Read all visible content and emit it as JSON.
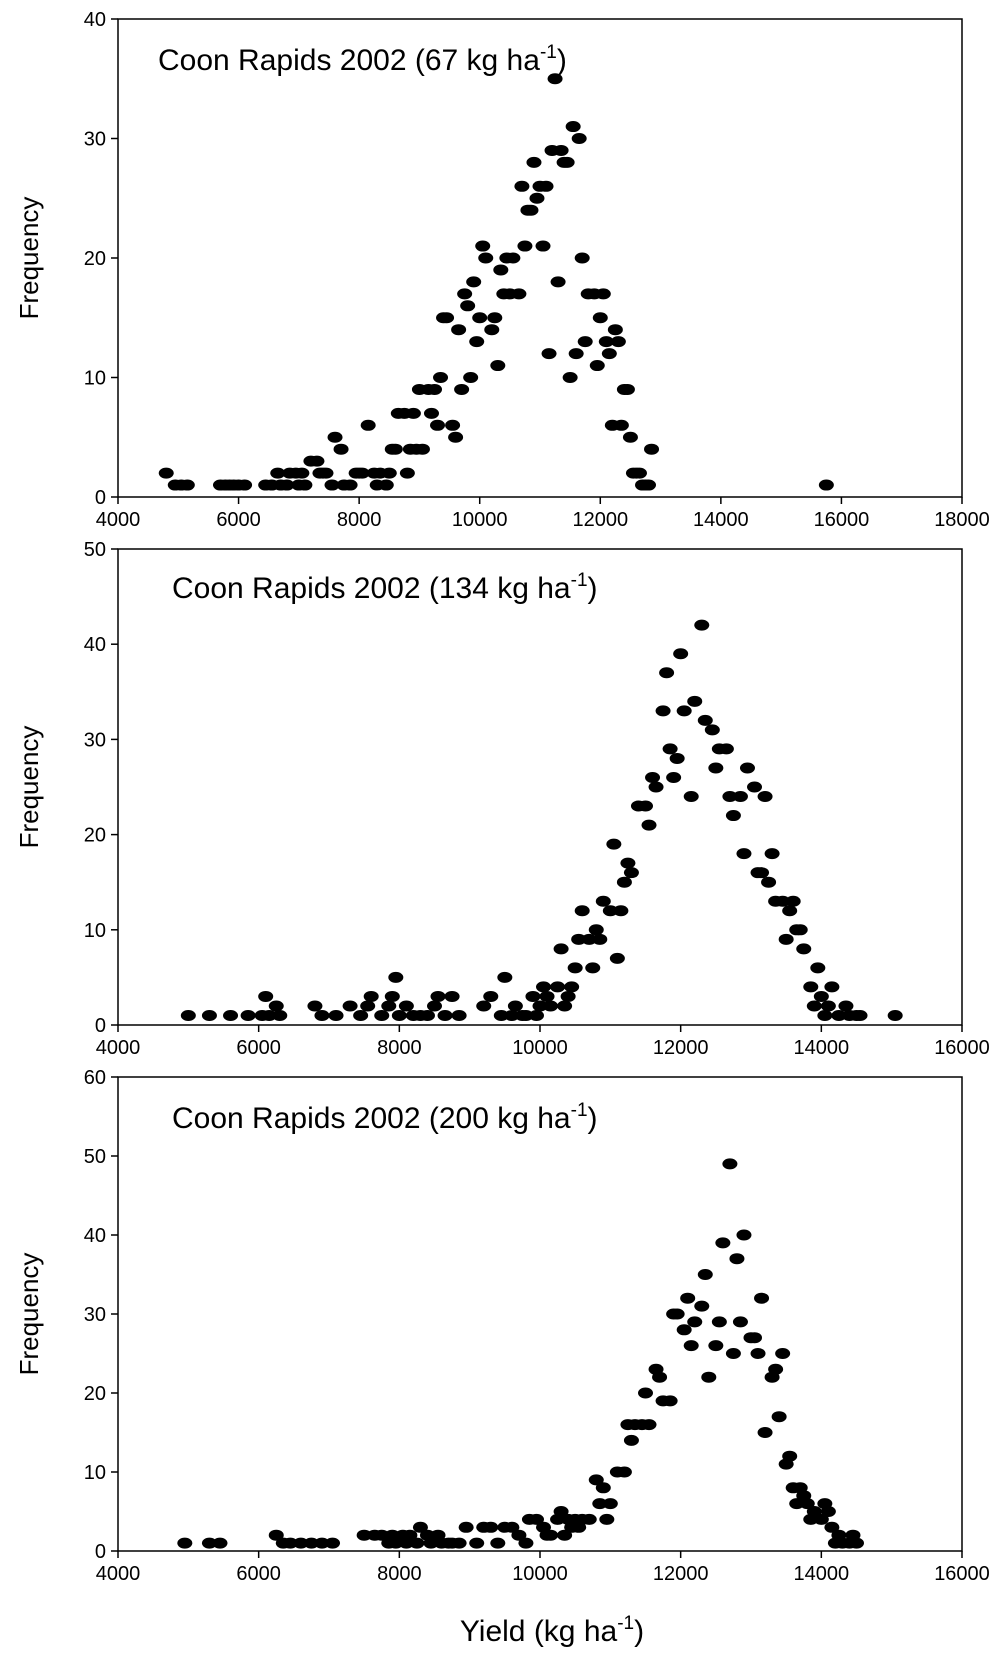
{
  "chart_data": [
    {
      "type": "scatter",
      "title": "Coon Rapids 2002 (67 kg ha",
      "title_sup": "-1",
      "title_end": ")",
      "ylabel": "Frequency",
      "xlim": [
        4000,
        18000
      ],
      "ylim": [
        0,
        40
      ],
      "xticks": [
        4000,
        6000,
        8000,
        10000,
        12000,
        14000,
        16000,
        18000
      ],
      "yticks": [
        0,
        10,
        20,
        30,
        40
      ],
      "points": [
        [
          4800,
          2
        ],
        [
          4950,
          1
        ],
        [
          5050,
          1
        ],
        [
          5150,
          1
        ],
        [
          5700,
          1
        ],
        [
          5780,
          1
        ],
        [
          5850,
          1
        ],
        [
          5920,
          1
        ],
        [
          6000,
          1
        ],
        [
          6100,
          1
        ],
        [
          6450,
          1
        ],
        [
          6550,
          1
        ],
        [
          6650,
          2
        ],
        [
          6700,
          1
        ],
        [
          6800,
          1
        ],
        [
          6850,
          2
        ],
        [
          6950,
          2
        ],
        [
          7000,
          1
        ],
        [
          7050,
          2
        ],
        [
          7100,
          1
        ],
        [
          7200,
          3
        ],
        [
          7300,
          3
        ],
        [
          7350,
          2
        ],
        [
          7400,
          2
        ],
        [
          7450,
          2
        ],
        [
          7550,
          1
        ],
        [
          7600,
          5
        ],
        [
          7700,
          4
        ],
        [
          7750,
          1
        ],
        [
          7850,
          1
        ],
        [
          7950,
          2
        ],
        [
          8000,
          2
        ],
        [
          8050,
          2
        ],
        [
          8150,
          6
        ],
        [
          8250,
          2
        ],
        [
          8300,
          1
        ],
        [
          8350,
          2
        ],
        [
          8450,
          1
        ],
        [
          8500,
          2
        ],
        [
          8550,
          4
        ],
        [
          8600,
          4
        ],
        [
          8650,
          7
        ],
        [
          8750,
          7
        ],
        [
          8800,
          2
        ],
        [
          8850,
          4
        ],
        [
          8900,
          7
        ],
        [
          8950,
          4
        ],
        [
          9000,
          9
        ],
        [
          9050,
          4
        ],
        [
          9150,
          9
        ],
        [
          9200,
          7
        ],
        [
          9250,
          9
        ],
        [
          9300,
          6
        ],
        [
          9350,
          10
        ],
        [
          9400,
          15
        ],
        [
          9450,
          15
        ],
        [
          9550,
          6
        ],
        [
          9600,
          5
        ],
        [
          9650,
          14
        ],
        [
          9700,
          9
        ],
        [
          9750,
          17
        ],
        [
          9800,
          16
        ],
        [
          9850,
          10
        ],
        [
          9900,
          18
        ],
        [
          9950,
          13
        ],
        [
          10000,
          15
        ],
        [
          10050,
          21
        ],
        [
          10100,
          20
        ],
        [
          10200,
          14
        ],
        [
          10250,
          15
        ],
        [
          10300,
          11
        ],
        [
          10350,
          19
        ],
        [
          10400,
          17
        ],
        [
          10450,
          20
        ],
        [
          10500,
          17
        ],
        [
          10550,
          20
        ],
        [
          10650,
          17
        ],
        [
          10700,
          26
        ],
        [
          10750,
          21
        ],
        [
          10800,
          24
        ],
        [
          10850,
          24
        ],
        [
          10900,
          28
        ],
        [
          10950,
          25
        ],
        [
          11000,
          26
        ],
        [
          11050,
          21
        ],
        [
          11100,
          26
        ],
        [
          11150,
          12
        ],
        [
          11200,
          29
        ],
        [
          11250,
          35
        ],
        [
          11300,
          18
        ],
        [
          11350,
          29
        ],
        [
          11400,
          28
        ],
        [
          11450,
          28
        ],
        [
          11500,
          10
        ],
        [
          11550,
          31
        ],
        [
          11600,
          12
        ],
        [
          11650,
          30
        ],
        [
          11700,
          20
        ],
        [
          11750,
          13
        ],
        [
          11800,
          17
        ],
        [
          11900,
          17
        ],
        [
          11950,
          11
        ],
        [
          12000,
          15
        ],
        [
          12050,
          17
        ],
        [
          12100,
          13
        ],
        [
          12150,
          12
        ],
        [
          12200,
          6
        ],
        [
          12250,
          14
        ],
        [
          12300,
          13
        ],
        [
          12350,
          6
        ],
        [
          12400,
          9
        ],
        [
          12450,
          9
        ],
        [
          12500,
          5
        ],
        [
          12550,
          2
        ],
        [
          12600,
          2
        ],
        [
          12650,
          2
        ],
        [
          12700,
          1
        ],
        [
          12750,
          1
        ],
        [
          12800,
          1
        ],
        [
          12850,
          4
        ],
        [
          15750,
          1
        ]
      ]
    },
    {
      "type": "scatter",
      "title": "Coon Rapids 2002 (134 kg ha",
      "title_sup": "-1",
      "title_end": ")",
      "ylabel": "Frequency",
      "xlim": [
        4000,
        16000
      ],
      "ylim": [
        0,
        50
      ],
      "xticks": [
        4000,
        6000,
        8000,
        10000,
        12000,
        14000,
        16000
      ],
      "yticks": [
        0,
        10,
        20,
        30,
        40,
        50
      ],
      "points": [
        [
          5000,
          1
        ],
        [
          5300,
          1
        ],
        [
          5600,
          1
        ],
        [
          5850,
          1
        ],
        [
          6050,
          1
        ],
        [
          6100,
          3
        ],
        [
          6150,
          1
        ],
        [
          6250,
          2
        ],
        [
          6300,
          1
        ],
        [
          6800,
          2
        ],
        [
          6900,
          1
        ],
        [
          7100,
          1
        ],
        [
          7300,
          2
        ],
        [
          7450,
          1
        ],
        [
          7550,
          2
        ],
        [
          7600,
          3
        ],
        [
          7750,
          1
        ],
        [
          7850,
          2
        ],
        [
          7900,
          3
        ],
        [
          7950,
          5
        ],
        [
          8000,
          1
        ],
        [
          8100,
          2
        ],
        [
          8200,
          1
        ],
        [
          8300,
          1
        ],
        [
          8400,
          1
        ],
        [
          8500,
          2
        ],
        [
          8550,
          3
        ],
        [
          8650,
          1
        ],
        [
          8750,
          3
        ],
        [
          8850,
          1
        ],
        [
          9200,
          2
        ],
        [
          9300,
          3
        ],
        [
          9450,
          1
        ],
        [
          9500,
          5
        ],
        [
          9600,
          1
        ],
        [
          9650,
          2
        ],
        [
          9750,
          1
        ],
        [
          9800,
          1
        ],
        [
          9900,
          3
        ],
        [
          9950,
          1
        ],
        [
          10000,
          2
        ],
        [
          10050,
          4
        ],
        [
          10100,
          3
        ],
        [
          10150,
          2
        ],
        [
          10250,
          4
        ],
        [
          10300,
          8
        ],
        [
          10350,
          2
        ],
        [
          10400,
          3
        ],
        [
          10450,
          4
        ],
        [
          10500,
          6
        ],
        [
          10550,
          9
        ],
        [
          10600,
          12
        ],
        [
          10700,
          9
        ],
        [
          10750,
          6
        ],
        [
          10800,
          10
        ],
        [
          10850,
          9
        ],
        [
          10900,
          13
        ],
        [
          11000,
          12
        ],
        [
          11050,
          19
        ],
        [
          11100,
          7
        ],
        [
          11150,
          12
        ],
        [
          11200,
          15
        ],
        [
          11250,
          17
        ],
        [
          11300,
          16
        ],
        [
          11400,
          23
        ],
        [
          11500,
          23
        ],
        [
          11550,
          21
        ],
        [
          11600,
          26
        ],
        [
          11650,
          25
        ],
        [
          11750,
          33
        ],
        [
          11800,
          37
        ],
        [
          11850,
          29
        ],
        [
          11900,
          26
        ],
        [
          11950,
          28
        ],
        [
          12000,
          39
        ],
        [
          12050,
          33
        ],
        [
          12150,
          24
        ],
        [
          12200,
          34
        ],
        [
          12300,
          42
        ],
        [
          12350,
          32
        ],
        [
          12450,
          31
        ],
        [
          12500,
          27
        ],
        [
          12550,
          29
        ],
        [
          12650,
          29
        ],
        [
          12700,
          24
        ],
        [
          12750,
          22
        ],
        [
          12850,
          24
        ],
        [
          12900,
          18
        ],
        [
          12950,
          27
        ],
        [
          13050,
          25
        ],
        [
          13100,
          16
        ],
        [
          13150,
          16
        ],
        [
          13200,
          24
        ],
        [
          13250,
          15
        ],
        [
          13300,
          18
        ],
        [
          13350,
          13
        ],
        [
          13450,
          13
        ],
        [
          13500,
          9
        ],
        [
          13550,
          12
        ],
        [
          13600,
          13
        ],
        [
          13650,
          10
        ],
        [
          13700,
          10
        ],
        [
          13750,
          8
        ],
        [
          13850,
          4
        ],
        [
          13900,
          2
        ],
        [
          13950,
          6
        ],
        [
          14000,
          3
        ],
        [
          14050,
          1
        ],
        [
          14100,
          2
        ],
        [
          14150,
          4
        ],
        [
          14250,
          1
        ],
        [
          14350,
          2
        ],
        [
          14400,
          1
        ],
        [
          14500,
          1
        ],
        [
          14550,
          1
        ],
        [
          15050,
          1
        ]
      ]
    },
    {
      "type": "scatter",
      "title": "Coon Rapids 2002 (200 kg ha",
      "title_sup": "-1",
      "title_end": ")",
      "ylabel": "Frequency",
      "xlabel": "Yield (kg ha",
      "xlabel_sup": "-1",
      "xlabel_end": ")",
      "xlim": [
        4000,
        16000
      ],
      "ylim": [
        0,
        60
      ],
      "xticks": [
        4000,
        6000,
        8000,
        10000,
        12000,
        14000,
        16000
      ],
      "yticks": [
        0,
        10,
        20,
        30,
        40,
        50,
        60
      ],
      "points": [
        [
          4950,
          1
        ],
        [
          5300,
          1
        ],
        [
          5450,
          1
        ],
        [
          6250,
          2
        ],
        [
          6350,
          1
        ],
        [
          6450,
          1
        ],
        [
          6600,
          1
        ],
        [
          6750,
          1
        ],
        [
          6900,
          1
        ],
        [
          7050,
          1
        ],
        [
          7500,
          2
        ],
        [
          7650,
          2
        ],
        [
          7750,
          2
        ],
        [
          7850,
          1
        ],
        [
          7900,
          2
        ],
        [
          7950,
          1
        ],
        [
          8050,
          2
        ],
        [
          8100,
          1
        ],
        [
          8150,
          2
        ],
        [
          8250,
          1
        ],
        [
          8300,
          3
        ],
        [
          8400,
          2
        ],
        [
          8450,
          1
        ],
        [
          8550,
          2
        ],
        [
          8600,
          1
        ],
        [
          8700,
          1
        ],
        [
          8750,
          1
        ],
        [
          8850,
          1
        ],
        [
          8950,
          3
        ],
        [
          9100,
          1
        ],
        [
          9200,
          3
        ],
        [
          9300,
          3
        ],
        [
          9400,
          1
        ],
        [
          9500,
          3
        ],
        [
          9600,
          3
        ],
        [
          9700,
          2
        ],
        [
          9800,
          1
        ],
        [
          9850,
          4
        ],
        [
          9950,
          4
        ],
        [
          10050,
          3
        ],
        [
          10100,
          2
        ],
        [
          10150,
          2
        ],
        [
          10250,
          4
        ],
        [
          10300,
          5
        ],
        [
          10350,
          2
        ],
        [
          10400,
          4
        ],
        [
          10450,
          3
        ],
        [
          10500,
          4
        ],
        [
          10550,
          3
        ],
        [
          10600,
          4
        ],
        [
          10700,
          4
        ],
        [
          10800,
          9
        ],
        [
          10850,
          6
        ],
        [
          10900,
          8
        ],
        [
          10950,
          4
        ],
        [
          11000,
          6
        ],
        [
          11100,
          10
        ],
        [
          11200,
          10
        ],
        [
          11250,
          16
        ],
        [
          11300,
          14
        ],
        [
          11350,
          16
        ],
        [
          11450,
          16
        ],
        [
          11550,
          16
        ],
        [
          11500,
          20
        ],
        [
          11650,
          23
        ],
        [
          11700,
          22
        ],
        [
          11750,
          19
        ],
        [
          11850,
          19
        ],
        [
          11900,
          30
        ],
        [
          11950,
          30
        ],
        [
          12050,
          28
        ],
        [
          12100,
          32
        ],
        [
          12150,
          26
        ],
        [
          12200,
          29
        ],
        [
          12300,
          31
        ],
        [
          12350,
          35
        ],
        [
          12400,
          22
        ],
        [
          12500,
          26
        ],
        [
          12550,
          29
        ],
        [
          12600,
          39
        ],
        [
          12700,
          49
        ],
        [
          12750,
          25
        ],
        [
          12800,
          37
        ],
        [
          12850,
          29
        ],
        [
          12900,
          40
        ],
        [
          13000,
          27
        ],
        [
          13050,
          27
        ],
        [
          13100,
          25
        ],
        [
          13150,
          32
        ],
        [
          13200,
          15
        ],
        [
          13300,
          22
        ],
        [
          13350,
          23
        ],
        [
          13400,
          17
        ],
        [
          13450,
          25
        ],
        [
          13500,
          11
        ],
        [
          13550,
          12
        ],
        [
          13600,
          8
        ],
        [
          13650,
          6
        ],
        [
          13700,
          8
        ],
        [
          13750,
          7
        ],
        [
          13800,
          6
        ],
        [
          13850,
          4
        ],
        [
          13900,
          5
        ],
        [
          14000,
          4
        ],
        [
          14050,
          6
        ],
        [
          14100,
          5
        ],
        [
          14150,
          3
        ],
        [
          14200,
          1
        ],
        [
          14250,
          2
        ],
        [
          14300,
          1
        ],
        [
          14400,
          1
        ],
        [
          14450,
          2
        ],
        [
          14500,
          1
        ]
      ]
    }
  ]
}
